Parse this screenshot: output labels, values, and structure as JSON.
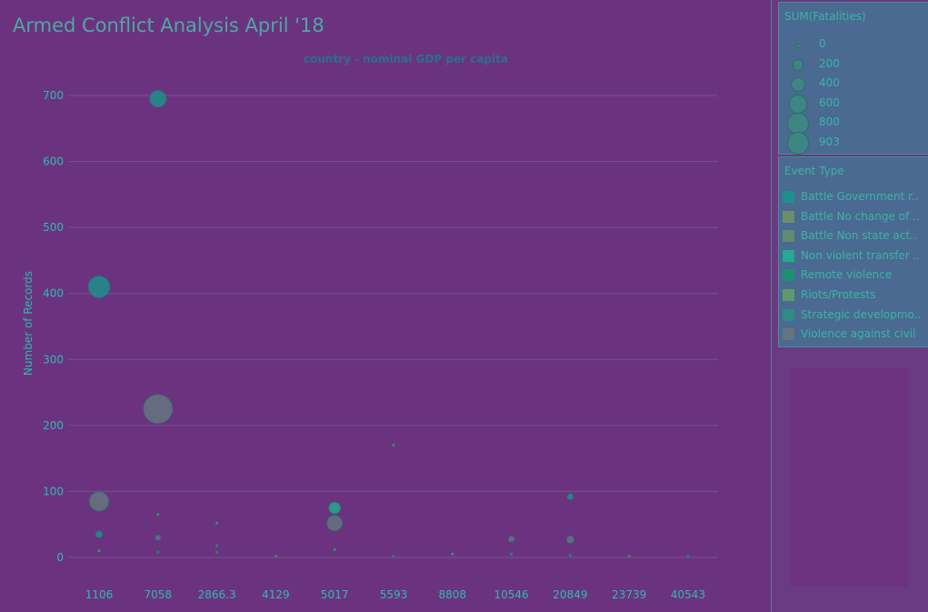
{
  "dashboard": {
    "title": "Armed Conflict Analysis April '18"
  },
  "chart_data": {
    "type": "scatter",
    "title": "country - nominal GDP per capita",
    "ylabel": "Number of Records",
    "xlabel": "",
    "categories": [
      "1106",
      "7058",
      "2866.3",
      "4129",
      "5017",
      "5593",
      "8808",
      "10546",
      "20849",
      "23739",
      "40543"
    ],
    "ylim": [
      0,
      700
    ],
    "yticks": [
      0,
      100,
      200,
      300,
      400,
      500,
      600,
      700
    ],
    "grid": true,
    "size_field": "SUM(Fatalities)",
    "color_field": "Event Type",
    "points": [
      {
        "category": "7058",
        "y": 695,
        "size": 300,
        "event": "Battle Government r.."
      },
      {
        "category": "1106",
        "y": 410,
        "size": 500,
        "event": "Battle Government r.."
      },
      {
        "category": "7058",
        "y": 225,
        "size": 903,
        "event": "Violence against civil"
      },
      {
        "category": "1106",
        "y": 85,
        "size": 400,
        "event": "Violence against civil"
      },
      {
        "category": "1106",
        "y": 35,
        "size": 50,
        "event": "Battle Government r.."
      },
      {
        "category": "1106",
        "y": 10,
        "size": 5,
        "event": "Riots/Protests"
      },
      {
        "category": "7058",
        "y": 30,
        "size": 30,
        "event": "Violence against civil"
      },
      {
        "category": "7058",
        "y": 65,
        "size": 2,
        "event": "Riots/Protests"
      },
      {
        "category": "7058",
        "y": 8,
        "size": 2,
        "event": "Remote violence"
      },
      {
        "category": "2866.3",
        "y": 52,
        "size": 5,
        "event": "Riots/Protests"
      },
      {
        "category": "2866.3",
        "y": 18,
        "size": 2,
        "event": "Strategic developmo.."
      },
      {
        "category": "2866.3",
        "y": 8,
        "size": 2,
        "event": "Strategic developmo.."
      },
      {
        "category": "4129",
        "y": 2,
        "size": 1,
        "event": "Riots/Protests"
      },
      {
        "category": "5017",
        "y": 75,
        "size": 150,
        "event": "Non violent transfer .."
      },
      {
        "category": "5017",
        "y": 52,
        "size": 260,
        "event": "Violence against civil"
      },
      {
        "category": "5017",
        "y": 12,
        "size": 5,
        "event": "Riots/Protests"
      },
      {
        "category": "5593",
        "y": 170,
        "size": 1,
        "event": "Riots/Protests"
      },
      {
        "category": "5593",
        "y": 2,
        "size": 2,
        "event": "Battle Government r.."
      },
      {
        "category": "8808",
        "y": 5,
        "size": 2,
        "event": "Riots/Protests"
      },
      {
        "category": "10546",
        "y": 28,
        "size": 40,
        "event": "Violence against civil"
      },
      {
        "category": "10546",
        "y": 5,
        "size": 10,
        "event": "Battle Government r.."
      },
      {
        "category": "20849",
        "y": 92,
        "size": 40,
        "event": "Battle Government r.."
      },
      {
        "category": "20849",
        "y": 27,
        "size": 60,
        "event": "Violence against civil"
      },
      {
        "category": "20849",
        "y": 3,
        "size": 8,
        "event": "Battle Government r.."
      },
      {
        "category": "23739",
        "y": 2,
        "size": 1,
        "event": "Riots/Protests"
      },
      {
        "category": "40543",
        "y": 2,
        "size": 1,
        "event": "Battle Government r.."
      }
    ]
  },
  "size_legend": {
    "title": "SUM(Fatalities)",
    "entries": [
      {
        "label": "0",
        "value": 0
      },
      {
        "label": "200",
        "value": 200
      },
      {
        "label": "400",
        "value": 400
      },
      {
        "label": "600",
        "value": 600
      },
      {
        "label": "800",
        "value": 800
      },
      {
        "label": "903",
        "value": 903
      }
    ]
  },
  "color_legend": {
    "title": "Event Type",
    "entries": [
      {
        "label": "Battle Government r..",
        "color": "#1f8f8c"
      },
      {
        "label": "Battle No change of ..",
        "color": "#6e8d6a"
      },
      {
        "label": "Battle Non state act..",
        "color": "#5f8b70"
      },
      {
        "label": "Non violent transfer ..",
        "color": "#27a890"
      },
      {
        "label": "Remote violence",
        "color": "#1f8f74"
      },
      {
        "label": "Riots/Protests",
        "color": "#5d9a6e"
      },
      {
        "label": "Strategic developmo..",
        "color": "#2e8b87"
      },
      {
        "label": "Violence against civil",
        "color": "#65757f"
      }
    ]
  },
  "colors": {
    "background": "#6a3a82",
    "grid": "#7c4e92",
    "axis_text": "#2fb9b0"
  }
}
